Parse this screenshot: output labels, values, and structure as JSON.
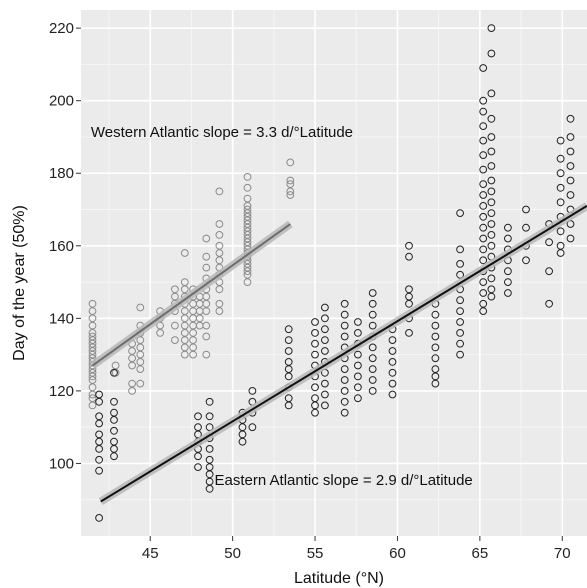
{
  "chart_data": {
    "type": "scatter",
    "xlabel": "Latitude (°N)",
    "ylabel": "Day of the year (50%)",
    "xlim": [
      40.8,
      71.5
    ],
    "ylim": [
      80,
      225
    ],
    "x_ticks": [
      45,
      50,
      55,
      60,
      65,
      70
    ],
    "y_ticks": [
      100,
      120,
      140,
      160,
      180,
      200,
      220
    ],
    "grid": true,
    "annotations": [
      {
        "text": "Western Atlantic slope = 3.3 d/°Latitude",
        "x": 41.4,
        "y": 190
      },
      {
        "text": "Eastern Atlantic slope = 2.9 d/°Latitude",
        "x": 48.9,
        "y": 94
      }
    ],
    "series": [
      {
        "color": "#8a8a8a",
        "points": [
          {
            "x": 41.5,
            "y": [
              144,
              142,
              140,
              138,
              136,
              135,
              134,
              133,
              132,
              131,
              130,
              129,
              128,
              127,
              126,
              125,
              124,
              123,
              121,
              119,
              118,
              116
            ]
          },
          {
            "x": 42.9,
            "y": [
              127,
              125
            ]
          },
          {
            "x": 43.9,
            "y": [
              133,
              131,
              129,
              127,
              122,
              120
            ]
          },
          {
            "x": 44.4,
            "y": [
              143,
              138,
              136,
              134,
              132,
              130,
              128,
              126,
              122
            ]
          },
          {
            "x": 45.6,
            "y": [
              142,
              140,
              138,
              136
            ]
          },
          {
            "x": 46.5,
            "y": [
              148,
              146,
              144,
              142,
              138,
              134
            ]
          },
          {
            "x": 47.1,
            "y": [
              158,
              150,
              148,
              146,
              144,
              142,
              140,
              138,
              136,
              134,
              132,
              130
            ]
          },
          {
            "x": 47.6,
            "y": [
              148,
              146,
              144,
              142,
              140,
              138,
              136,
              134,
              132,
              130
            ]
          },
          {
            "x": 48.0,
            "y": [
              146,
              144,
              142,
              140,
              138
            ]
          },
          {
            "x": 48.4,
            "y": [
              162,
              157,
              154,
              151,
              148,
              146,
              144,
              142,
              138,
              135,
              130
            ]
          },
          {
            "x": 49.2,
            "y": [
              175,
              166,
              163,
              160,
              158,
              156,
              154,
              152,
              150,
              148,
              144,
              142
            ]
          },
          {
            "x": 50.9,
            "y": [
              179,
              176,
              173,
              171,
              170,
              169,
              168,
              167,
              166,
              165,
              164,
              163,
              162,
              161,
              160,
              159,
              158,
              157,
              156,
              155,
              154,
              153,
              152,
              150
            ]
          },
          {
            "x": 53.5,
            "y": [
              183,
              178,
              177,
              175,
              174
            ]
          }
        ],
        "fit": {
          "x": [
            41.5,
            53.5
          ],
          "y": [
            127,
            166
          ]
        }
      },
      {
        "color": "#222222",
        "points": [
          {
            "x": 41.9,
            "y": [
              85,
              98,
              101,
              104,
              106,
              108,
              111,
              113,
              117,
              119
            ]
          },
          {
            "x": 42.8,
            "y": [
              125,
              117,
              114,
              112,
              109,
              106,
              104,
              102
            ]
          },
          {
            "x": 47.9,
            "y": [
              113,
              110,
              108,
              106,
              104,
              102,
              99
            ]
          },
          {
            "x": 48.6,
            "y": [
              117,
              113,
              110,
              107,
              104,
              101,
              99,
              97,
              95,
              93
            ]
          },
          {
            "x": 50.6,
            "y": [
              114,
              112,
              110,
              108,
              106
            ]
          },
          {
            "x": 51.2,
            "y": [
              120,
              117,
              114,
              110
            ]
          },
          {
            "x": 53.4,
            "y": [
              137,
              134,
              131,
              128,
              126,
              124,
              121,
              118,
              116
            ]
          },
          {
            "x": 55.0,
            "y": [
              139,
              136,
              133,
              130,
              127,
              124,
              121,
              118,
              116,
              114
            ]
          },
          {
            "x": 55.6,
            "y": [
              143,
              140,
              137,
              134,
              131,
              128,
              125,
              122,
              119,
              116
            ]
          },
          {
            "x": 56.8,
            "y": [
              144,
              141,
              138,
              135,
              132,
              129,
              126,
              123,
              120,
              117,
              114
            ]
          },
          {
            "x": 57.6,
            "y": [
              139,
              136,
              133,
              130,
              127,
              124,
              121,
              118
            ]
          },
          {
            "x": 58.5,
            "y": [
              147,
              144,
              141,
              138,
              135,
              132,
              129,
              126,
              123,
              120
            ]
          },
          {
            "x": 59.7,
            "y": [
              137,
              134,
              131,
              128,
              125,
              122,
              119
            ]
          },
          {
            "x": 60.7,
            "y": [
              160,
              157,
              148,
              146,
              144,
              140,
              136
            ]
          },
          {
            "x": 62.3,
            "y": [
              144,
              141,
              138,
              135,
              132,
              129,
              126,
              124,
              122
            ]
          },
          {
            "x": 63.8,
            "y": [
              169,
              159,
              155,
              152,
              148,
              145,
              142,
              139,
              136,
              133,
              130
            ]
          },
          {
            "x": 65.2,
            "y": [
              209,
              200,
              197,
              193,
              189,
              185,
              181,
              177,
              174,
              171,
              168,
              165,
              162,
              159,
              156,
              153,
              150,
              147,
              144,
              142
            ]
          },
          {
            "x": 65.7,
            "y": [
              220,
              213,
              202,
              195,
              190,
              186,
              182,
              178,
              175,
              172,
              169,
              166,
              163,
              160,
              157,
              154,
              151,
              148,
              146
            ]
          },
          {
            "x": 66.7,
            "y": [
              165,
              162,
              159,
              156,
              153,
              150,
              147
            ]
          },
          {
            "x": 67.8,
            "y": [
              170,
              165,
              160,
              156
            ]
          },
          {
            "x": 69.2,
            "y": [
              166,
              161,
              153,
              144
            ]
          },
          {
            "x": 69.9,
            "y": [
              189,
              184,
              180,
              176,
              172,
              168,
              164,
              160,
              158
            ]
          },
          {
            "x": 70.5,
            "y": [
              195,
              190,
              186,
              182,
              178,
              174,
              170,
              166,
              162
            ]
          }
        ],
        "fit": {
          "x": [
            42.0,
            71.5
          ],
          "y": [
            89.5,
            171
          ]
        }
      }
    ]
  }
}
